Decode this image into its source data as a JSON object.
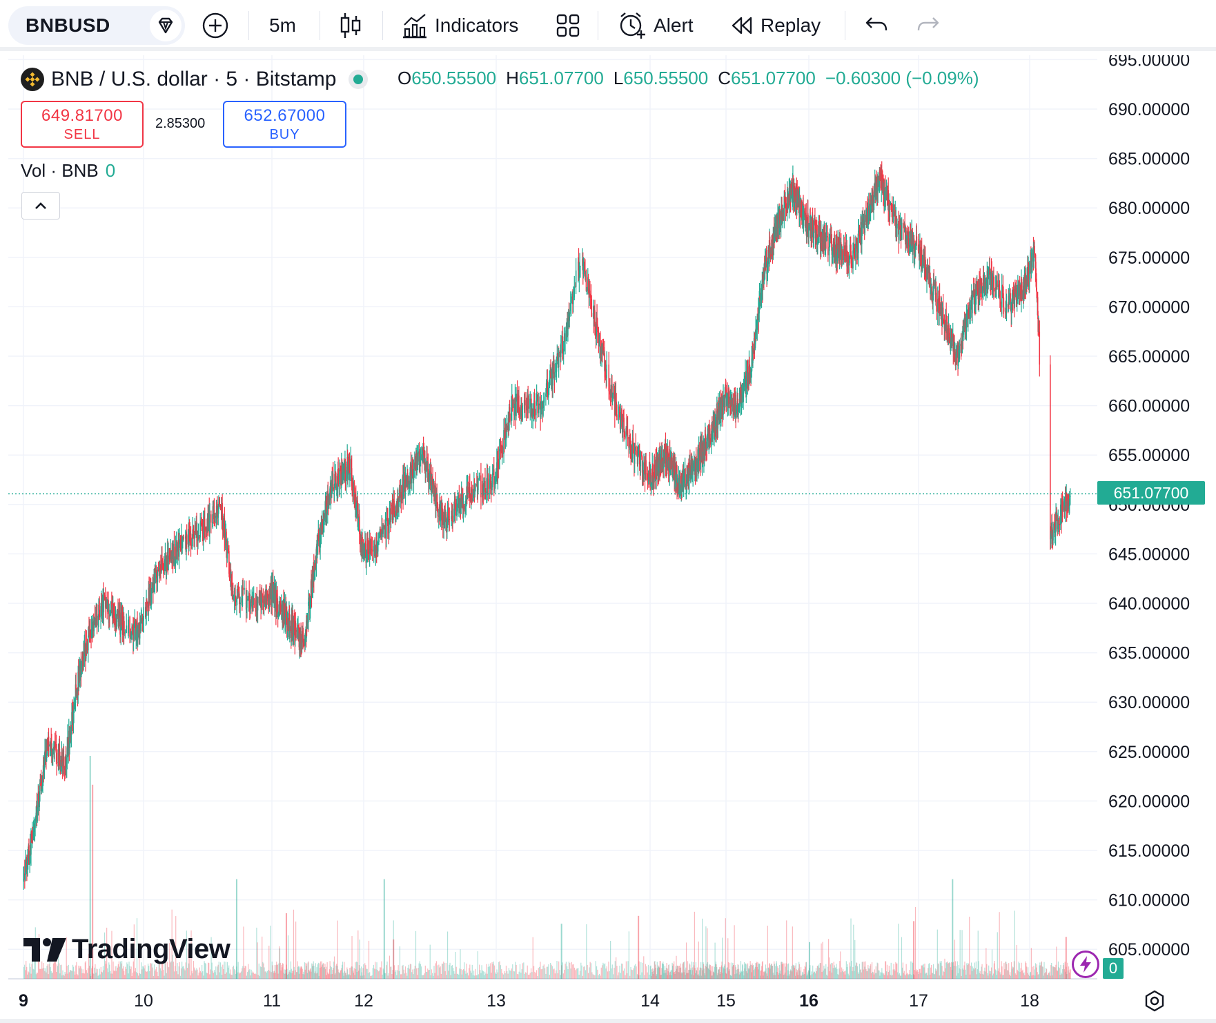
{
  "toolbar": {
    "symbol": "BNBUSD",
    "interval": "5m",
    "indicators_label": "Indicators",
    "alert_label": "Alert",
    "replay_label": "Replay"
  },
  "legend": {
    "title": "BNB / U.S. dollar · 5 · Bitstamp",
    "o_key": "O",
    "o_val": "650.55500",
    "h_key": "H",
    "h_val": "651.07700",
    "l_key": "L",
    "l_val": "650.55500",
    "c_key": "C",
    "c_val": "651.07700",
    "change": "−0.60300 (−0.09%)",
    "sell_price": "649.81700",
    "sell_label": "SELL",
    "spread": "2.85300",
    "buy_price": "652.67000",
    "buy_label": "BUY",
    "vol_label": "Vol · BNB",
    "vol_value": "0"
  },
  "watermark": "TradingView",
  "colors": {
    "up": "#22ab94",
    "down": "#f23645",
    "grid": "#f0f3fa",
    "axis_text": "#131722"
  },
  "last_price_label": "651.07700",
  "volume_tag": "0",
  "chart_data": {
    "type": "candlestick",
    "y_axis": {
      "min": 605,
      "max": 695,
      "step": 5,
      "tick_labels": [
        "695.00000",
        "690.00000",
        "685.00000",
        "680.00000",
        "675.00000",
        "670.00000",
        "665.00000",
        "660.00000",
        "655.00000",
        "650.00000",
        "645.00000",
        "640.00000",
        "635.00000",
        "630.00000",
        "625.00000",
        "620.00000",
        "615.00000",
        "610.00000",
        "605.00000"
      ]
    },
    "x_axis": {
      "tick_labels": [
        "9",
        "10",
        "11",
        "12",
        "13",
        "14",
        "15",
        "16",
        "17",
        "18"
      ],
      "bold": [
        "9",
        "16"
      ]
    },
    "last_price": 651.077,
    "price_path": [
      {
        "day": 9.0,
        "price": 612
      },
      {
        "day": 9.1,
        "price": 618
      },
      {
        "day": 9.2,
        "price": 626
      },
      {
        "day": 9.35,
        "price": 624
      },
      {
        "day": 9.45,
        "price": 632
      },
      {
        "day": 9.55,
        "price": 637
      },
      {
        "day": 9.65,
        "price": 640
      },
      {
        "day": 9.8,
        "price": 638
      },
      {
        "day": 9.95,
        "price": 637
      },
      {
        "day": 10.1,
        "price": 643
      },
      {
        "day": 10.3,
        "price": 646
      },
      {
        "day": 10.5,
        "price": 648
      },
      {
        "day": 10.6,
        "price": 650
      },
      {
        "day": 10.7,
        "price": 641
      },
      {
        "day": 10.85,
        "price": 640
      },
      {
        "day": 11.0,
        "price": 641
      },
      {
        "day": 11.2,
        "price": 638
      },
      {
        "day": 11.35,
        "price": 636
      },
      {
        "day": 11.5,
        "price": 646
      },
      {
        "day": 11.65,
        "price": 652
      },
      {
        "day": 11.85,
        "price": 654
      },
      {
        "day": 12.0,
        "price": 645
      },
      {
        "day": 12.15,
        "price": 647
      },
      {
        "day": 12.3,
        "price": 652
      },
      {
        "day": 12.45,
        "price": 655
      },
      {
        "day": 12.6,
        "price": 648
      },
      {
        "day": 12.8,
        "price": 651
      },
      {
        "day": 13.0,
        "price": 653
      },
      {
        "day": 13.1,
        "price": 660
      },
      {
        "day": 13.3,
        "price": 660
      },
      {
        "day": 13.45,
        "price": 667
      },
      {
        "day": 13.55,
        "price": 675
      },
      {
        "day": 13.65,
        "price": 668
      },
      {
        "day": 13.75,
        "price": 661
      },
      {
        "day": 13.9,
        "price": 655
      },
      {
        "day": 14.0,
        "price": 653
      },
      {
        "day": 14.2,
        "price": 655
      },
      {
        "day": 14.4,
        "price": 652
      },
      {
        "day": 14.6,
        "price": 654
      },
      {
        "day": 14.85,
        "price": 658
      },
      {
        "day": 15.0,
        "price": 661
      },
      {
        "day": 15.15,
        "price": 660
      },
      {
        "day": 15.3,
        "price": 664
      },
      {
        "day": 15.45,
        "price": 673
      },
      {
        "day": 15.6,
        "price": 678
      },
      {
        "day": 15.8,
        "price": 682
      },
      {
        "day": 16.0,
        "price": 678
      },
      {
        "day": 16.2,
        "price": 676
      },
      {
        "day": 16.4,
        "price": 675
      },
      {
        "day": 16.55,
        "price": 680
      },
      {
        "day": 16.65,
        "price": 683
      },
      {
        "day": 16.8,
        "price": 678
      },
      {
        "day": 17.0,
        "price": 676
      },
      {
        "day": 17.15,
        "price": 671
      },
      {
        "day": 17.25,
        "price": 668
      },
      {
        "day": 17.35,
        "price": 665
      },
      {
        "day": 17.5,
        "price": 671
      },
      {
        "day": 17.65,
        "price": 673
      },
      {
        "day": 17.8,
        "price": 670
      },
      {
        "day": 17.95,
        "price": 672
      },
      {
        "day": 18.05,
        "price": 676
      },
      {
        "day": 18.1,
        "price": 664
      },
      {
        "day": 18.15,
        "price": 655
      },
      {
        "day": 18.2,
        "price": 647
      },
      {
        "day": 18.3,
        "price": 649
      },
      {
        "day": 18.4,
        "price": 651
      }
    ],
    "volume_spikes": [
      {
        "day": 9.55,
        "value": 0.85
      },
      {
        "day": 9.57,
        "value": 0.74
      },
      {
        "day": 10.72,
        "value": 0.38
      },
      {
        "day": 11.15,
        "value": 0.25
      },
      {
        "day": 12.15,
        "value": 0.38
      },
      {
        "day": 12.22,
        "value": 0.15
      },
      {
        "day": 13.42,
        "value": 0.21
      },
      {
        "day": 13.92,
        "value": 0.24
      },
      {
        "day": 16.0,
        "value": 0.14
      },
      {
        "day": 16.95,
        "value": 0.22
      },
      {
        "day": 17.3,
        "value": 0.38
      },
      {
        "day": 18.35,
        "value": 0.16
      }
    ]
  }
}
